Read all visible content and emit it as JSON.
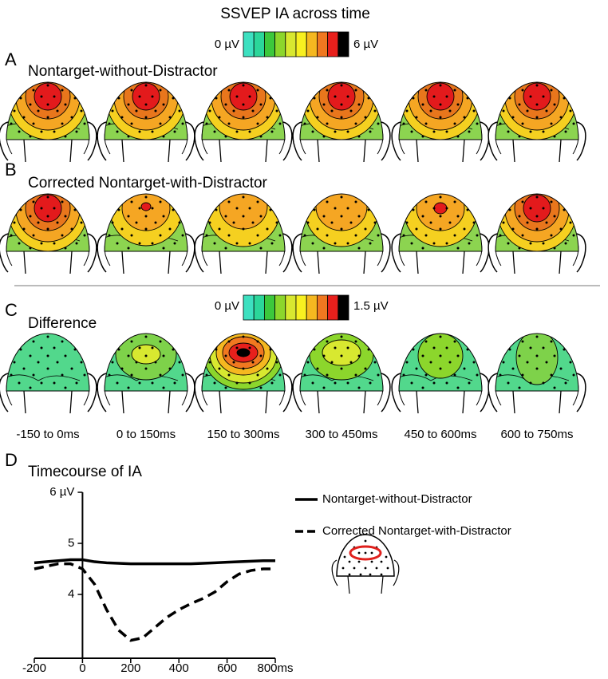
{
  "figure": {
    "title": "SSVEP IA across time",
    "colorbar_top": {
      "min_label": "0 µV",
      "max_label": "6 µV"
    },
    "colorbar_diff": {
      "min_label": "0 µV",
      "max_label": "1.5 µV"
    },
    "panels": [
      {
        "letter": "A",
        "title": "Nontarget-without-Distractor"
      },
      {
        "letter": "B",
        "title": "Corrected Nontarget-with-Distractor"
      },
      {
        "letter": "C",
        "title": "Difference"
      },
      {
        "letter": "D",
        "title": "Timecourse of IA"
      }
    ],
    "time_windows": [
      "-150 to 0ms",
      "0 to 150ms",
      "150 to 300ms",
      "300 to 450ms",
      "450 to 600ms",
      "600 to 750ms"
    ]
  },
  "chart_data": {
    "type": "line",
    "x": [
      -200,
      -150,
      -100,
      -50,
      0,
      50,
      100,
      150,
      200,
      250,
      300,
      350,
      400,
      450,
      500,
      550,
      600,
      650,
      700,
      750,
      800
    ],
    "series": [
      {
        "name": "Nontarget-without-Distractor",
        "color": "#000000",
        "dash": "solid",
        "values": [
          4.62,
          4.64,
          4.66,
          4.68,
          4.68,
          4.64,
          4.62,
          4.61,
          4.6,
          4.6,
          4.6,
          4.6,
          4.6,
          4.6,
          4.61,
          4.62,
          4.63,
          4.64,
          4.65,
          4.66,
          4.66
        ]
      },
      {
        "name": "Corrected Nontarget-with-Distractor",
        "color": "#000000",
        "dash": "dashed",
        "values": [
          4.5,
          4.55,
          4.6,
          4.6,
          4.5,
          4.2,
          3.7,
          3.3,
          3.1,
          3.15,
          3.35,
          3.55,
          3.7,
          3.82,
          3.92,
          4.05,
          4.25,
          4.4,
          4.47,
          4.5,
          4.5
        ]
      }
    ],
    "xlim": [
      -200,
      800
    ],
    "ylim": [
      2.75,
      6
    ],
    "xticks": [
      -200,
      0,
      200,
      400,
      600,
      {
        "value": 800,
        "label": "800ms"
      }
    ],
    "yticks": [
      4,
      5,
      {
        "value": 6,
        "label": "6 µV"
      }
    ]
  }
}
